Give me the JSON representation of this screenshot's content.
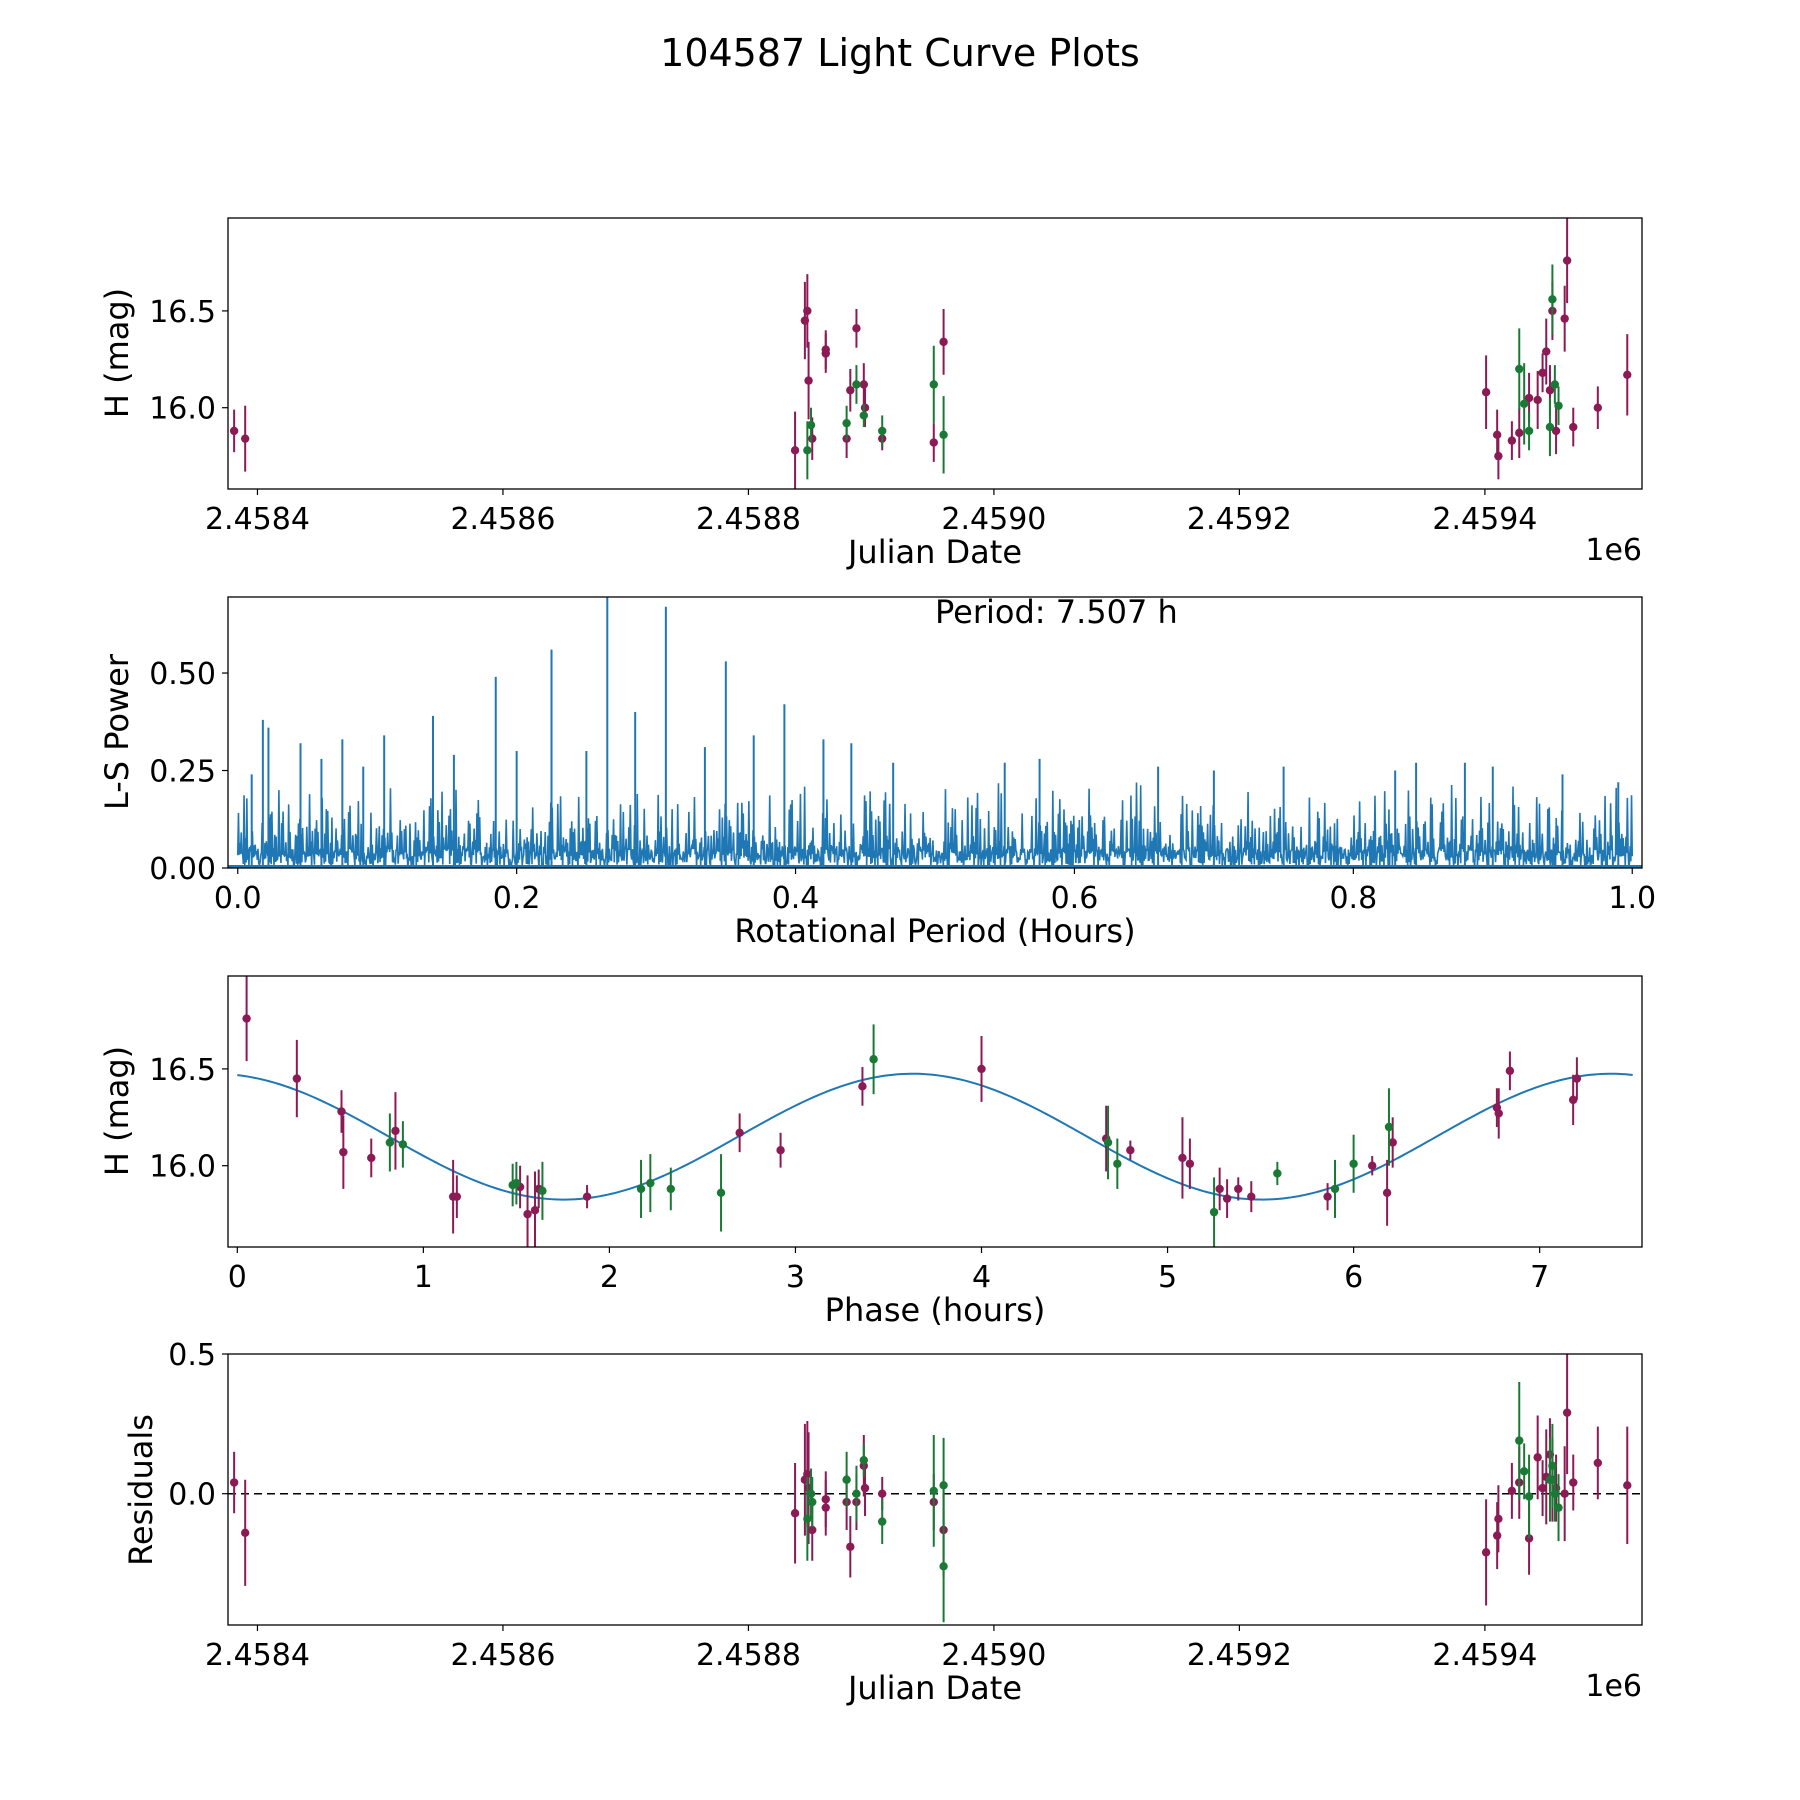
{
  "figure_title": "104587 Light Curve Plots",
  "colors": {
    "magenta": "#8b1a55",
    "green": "#1a7a35",
    "blue": "#1f77b4",
    "axis": "#000000"
  },
  "chart_data": [
    {
      "id": "lightcurve",
      "type": "scatter",
      "title": "",
      "xlabel": "Julian Date",
      "ylabel": "H (mag)",
      "offset_text": "1e6",
      "xlim": [
        2458376,
        2459528
      ],
      "ylim": [
        15.58,
        16.98
      ],
      "xticks": [
        2458400,
        2458600,
        2458800,
        2459000,
        2459200,
        2459400
      ],
      "xtick_labels": [
        "2.4584",
        "2.4586",
        "2.4588",
        "2.4590",
        "2.4592",
        "2.4594"
      ],
      "yticks": [
        16.0,
        16.5
      ],
      "ytick_labels": [
        "16.0",
        "16.5"
      ],
      "series": [
        {
          "name": "magenta",
          "color": "#8b1a55",
          "points": [
            [
              2458381,
              15.88,
              0.11
            ],
            [
              2458390,
              15.84,
              0.17
            ],
            [
              2458838,
              15.78,
              0.2
            ],
            [
              2458846,
              16.45,
              0.2
            ],
            [
              2458848,
              16.5,
              0.19
            ],
            [
              2458849,
              16.14,
              0.2
            ],
            [
              2458852,
              15.84,
              0.11
            ],
            [
              2458863,
              16.28,
              0.1
            ],
            [
              2458863,
              16.3,
              0.1
            ],
            [
              2458880,
              15.84,
              0.1
            ],
            [
              2458883,
              16.09,
              0.11
            ],
            [
              2458888,
              16.41,
              0.1
            ],
            [
              2458894,
              16.12,
              0.11
            ],
            [
              2458895,
              16.0,
              0.1
            ],
            [
              2458909,
              15.84,
              0.06
            ],
            [
              2458951,
              15.82,
              0.1
            ],
            [
              2458959,
              16.34,
              0.17
            ],
            [
              2459401,
              16.08,
              0.19
            ],
            [
              2459410,
              15.86,
              0.13
            ],
            [
              2459411,
              15.75,
              0.12
            ],
            [
              2459422,
              15.83,
              0.1
            ],
            [
              2459428,
              15.87,
              0.13
            ],
            [
              2459436,
              16.05,
              0.13
            ],
            [
              2459443,
              16.04,
              0.15
            ],
            [
              2459447,
              16.18,
              0.1
            ],
            [
              2459450,
              16.29,
              0.17
            ],
            [
              2459453,
              16.09,
              0.13
            ],
            [
              2459455,
              16.5,
              0.15
            ],
            [
              2459458,
              15.88,
              0.12
            ],
            [
              2459465,
              16.46,
              0.17
            ],
            [
              2459467,
              16.76,
              0.22
            ],
            [
              2459472,
              15.9,
              0.1
            ],
            [
              2459492,
              16.0,
              0.11
            ],
            [
              2459516,
              16.17,
              0.21
            ]
          ]
        },
        {
          "name": "green",
          "color": "#1a7a35",
          "points": [
            [
              2458848,
              15.78,
              0.15
            ],
            [
              2458851,
              15.91,
              0.09
            ],
            [
              2458880,
              15.92,
              0.09
            ],
            [
              2458888,
              16.12,
              0.1
            ],
            [
              2458894,
              15.96,
              0.06
            ],
            [
              2458909,
              15.88,
              0.08
            ],
            [
              2458951,
              16.12,
              0.2
            ],
            [
              2458959,
              15.86,
              0.2
            ],
            [
              2459428,
              16.2,
              0.21
            ],
            [
              2459432,
              16.02,
              0.21
            ],
            [
              2459436,
              15.88,
              0.1
            ],
            [
              2459453,
              15.9,
              0.15
            ],
            [
              2459455,
              16.56,
              0.18
            ],
            [
              2459457,
              16.12,
              0.1
            ],
            [
              2459460,
              16.01,
              0.1
            ]
          ]
        }
      ]
    },
    {
      "id": "periodogram",
      "type": "line",
      "title": "",
      "xlabel": "Rotational Period (Hours)",
      "ylabel": "L-S Power",
      "annotation": "Period: 7.507 h",
      "xlim": [
        -0.007,
        1.007
      ],
      "ylim": [
        0.0,
        0.695
      ],
      "xticks": [
        0.0,
        0.2,
        0.4,
        0.6,
        0.8,
        1.0
      ],
      "xtick_labels": [
        "0.0",
        "0.2",
        "0.4",
        "0.6",
        "0.8",
        "1.0"
      ],
      "yticks": [
        0.0,
        0.25,
        0.5
      ],
      "ytick_labels": [
        "0.00",
        "0.25",
        "0.50"
      ],
      "color": "#1f77b4",
      "x_range": [
        0.0,
        1.0
      ],
      "samples": 2000,
      "baseline": 0.05,
      "noise_max": 0.2,
      "peaks": [
        [
          0.01,
          0.24
        ],
        [
          0.018,
          0.38
        ],
        [
          0.022,
          0.36
        ],
        [
          0.045,
          0.32
        ],
        [
          0.06,
          0.28
        ],
        [
          0.075,
          0.33
        ],
        [
          0.09,
          0.26
        ],
        [
          0.105,
          0.34
        ],
        [
          0.14,
          0.39
        ],
        [
          0.155,
          0.29
        ],
        [
          0.185,
          0.49
        ],
        [
          0.2,
          0.3
        ],
        [
          0.225,
          0.56
        ],
        [
          0.25,
          0.3
        ],
        [
          0.265,
          0.7
        ],
        [
          0.285,
          0.4
        ],
        [
          0.307,
          0.67
        ],
        [
          0.335,
          0.31
        ],
        [
          0.35,
          0.53
        ],
        [
          0.37,
          0.34
        ],
        [
          0.392,
          0.42
        ],
        [
          0.42,
          0.33
        ],
        [
          0.44,
          0.32
        ],
        [
          0.47,
          0.27
        ],
        [
          0.55,
          0.27
        ],
        [
          0.575,
          0.28
        ],
        [
          0.66,
          0.26
        ],
        [
          0.7,
          0.25
        ],
        [
          0.75,
          0.26
        ],
        [
          0.83,
          0.25
        ],
        [
          0.845,
          0.27
        ],
        [
          0.88,
          0.27
        ],
        [
          0.9,
          0.26
        ],
        [
          0.95,
          0.24
        ],
        [
          0.99,
          0.22
        ]
      ]
    },
    {
      "id": "phasefold",
      "type": "scatter",
      "title": "",
      "xlabel": "Phase (hours)",
      "ylabel": "H (mag)",
      "xlim": [
        -0.05,
        7.55
      ],
      "ylim": [
        15.58,
        16.98
      ],
      "xticks": [
        0,
        1,
        2,
        3,
        4,
        5,
        6,
        7
      ],
      "xtick_labels": [
        "0",
        "1",
        "2",
        "3",
        "4",
        "5",
        "6",
        "7"
      ],
      "yticks": [
        16.0,
        16.5
      ],
      "ytick_labels": [
        "16.0",
        "16.5"
      ],
      "model": {
        "type": "sinusoid",
        "mean": 16.15,
        "amplitude": 0.325,
        "period": 3.753,
        "peak_phase": 3.63,
        "x_start": 0.0,
        "x_end": 7.5,
        "color": "#1f77b4"
      },
      "series": [
        {
          "name": "magenta",
          "color": "#8b1a55",
          "points": [
            [
              0.05,
              16.76,
              0.22
            ],
            [
              0.32,
              16.45,
              0.2
            ],
            [
              0.56,
              16.28,
              0.11
            ],
            [
              0.57,
              16.07,
              0.19
            ],
            [
              0.72,
              16.04,
              0.1
            ],
            [
              0.85,
              16.18,
              0.2
            ],
            [
              1.16,
              15.84,
              0.19
            ],
            [
              1.18,
              15.84,
              0.11
            ],
            [
              1.52,
              15.89,
              0.11
            ],
            [
              1.56,
              15.75,
              0.2
            ],
            [
              1.6,
              15.77,
              0.2
            ],
            [
              1.62,
              15.88,
              0.1
            ],
            [
              1.88,
              15.84,
              0.06
            ],
            [
              2.7,
              16.17,
              0.1
            ],
            [
              2.92,
              16.08,
              0.09
            ],
            [
              3.36,
              16.41,
              0.1
            ],
            [
              4.0,
              16.5,
              0.17
            ],
            [
              4.67,
              16.14,
              0.17
            ],
            [
              4.8,
              16.08,
              0.05
            ],
            [
              5.08,
              16.04,
              0.21
            ],
            [
              5.12,
              16.01,
              0.13
            ],
            [
              5.28,
              15.88,
              0.11
            ],
            [
              5.32,
              15.83,
              0.1
            ],
            [
              5.38,
              15.88,
              0.06
            ],
            [
              5.45,
              15.84,
              0.08
            ],
            [
              5.86,
              15.84,
              0.07
            ],
            [
              6.1,
              16.0,
              0.05
            ],
            [
              6.18,
              15.86,
              0.17
            ],
            [
              6.21,
              16.12,
              0.13
            ],
            [
              6.77,
              16.3,
              0.1
            ],
            [
              6.78,
              16.27,
              0.13
            ],
            [
              6.84,
              16.49,
              0.1
            ],
            [
              7.18,
              16.34,
              0.13
            ],
            [
              7.2,
              16.45,
              0.11
            ]
          ]
        },
        {
          "name": "green",
          "color": "#1a7a35",
          "points": [
            [
              0.82,
              16.12,
              0.15
            ],
            [
              0.89,
              16.11,
              0.12
            ],
            [
              1.48,
              15.9,
              0.11
            ],
            [
              1.5,
              15.91,
              0.11
            ],
            [
              1.64,
              15.87,
              0.15
            ],
            [
              2.17,
              15.88,
              0.15
            ],
            [
              2.22,
              15.91,
              0.15
            ],
            [
              2.33,
              15.88,
              0.11
            ],
            [
              2.6,
              15.86,
              0.2
            ],
            [
              3.42,
              16.55,
              0.18
            ],
            [
              4.68,
              16.12,
              0.19
            ],
            [
              4.73,
              16.01,
              0.13
            ],
            [
              5.25,
              15.76,
              0.18
            ],
            [
              5.59,
              15.96,
              0.06
            ],
            [
              5.9,
              15.88,
              0.15
            ],
            [
              6.0,
              16.01,
              0.15
            ],
            [
              6.19,
              16.2,
              0.2
            ]
          ]
        }
      ]
    },
    {
      "id": "residuals",
      "type": "scatter",
      "title": "",
      "xlabel": "Julian Date",
      "ylabel": "Residuals",
      "offset_text": "1e6",
      "xlim": [
        2458376,
        2459528
      ],
      "ylim": [
        -0.47,
        0.5
      ],
      "xticks": [
        2458400,
        2458600,
        2458800,
        2459000,
        2459200,
        2459400
      ],
      "xtick_labels": [
        "2.4584",
        "2.4586",
        "2.4588",
        "2.4590",
        "2.4592",
        "2.4594"
      ],
      "yticks": [
        0.0,
        0.5
      ],
      "ytick_labels": [
        "0.0",
        "0.5"
      ],
      "reference_line": 0.0,
      "series": [
        {
          "name": "magenta",
          "color": "#8b1a55",
          "points": [
            [
              2458381,
              0.04,
              0.11
            ],
            [
              2458390,
              -0.14,
              0.19
            ],
            [
              2458838,
              -0.07,
              0.18
            ],
            [
              2458846,
              0.05,
              0.2
            ],
            [
              2458848,
              0.07,
              0.19
            ],
            [
              2458849,
              0.02,
              0.2
            ],
            [
              2458852,
              -0.13,
              0.11
            ],
            [
              2458863,
              -0.02,
              0.1
            ],
            [
              2458863,
              -0.05,
              0.1
            ],
            [
              2458880,
              -0.03,
              0.1
            ],
            [
              2458883,
              -0.19,
              0.11
            ],
            [
              2458888,
              -0.03,
              0.1
            ],
            [
              2458894,
              0.1,
              0.11
            ],
            [
              2458895,
              0.02,
              0.1
            ],
            [
              2458909,
              0.0,
              0.06
            ],
            [
              2458951,
              -0.03,
              0.1
            ],
            [
              2458959,
              -0.13,
              0.17
            ],
            [
              2459401,
              -0.21,
              0.19
            ],
            [
              2459410,
              -0.15,
              0.12
            ],
            [
              2459411,
              -0.09,
              0.12
            ],
            [
              2459422,
              0.01,
              0.1
            ],
            [
              2459428,
              0.04,
              0.13
            ],
            [
              2459436,
              -0.16,
              0.13
            ],
            [
              2459443,
              0.13,
              0.15
            ],
            [
              2459447,
              0.02,
              0.1
            ],
            [
              2459450,
              0.06,
              0.17
            ],
            [
              2459453,
              0.14,
              0.13
            ],
            [
              2459455,
              0.05,
              0.15
            ],
            [
              2459458,
              0.02,
              0.12
            ],
            [
              2459465,
              0.0,
              0.17
            ],
            [
              2459467,
              0.29,
              0.22
            ],
            [
              2459472,
              0.04,
              0.1
            ],
            [
              2459492,
              0.11,
              0.13
            ],
            [
              2459516,
              0.03,
              0.21
            ]
          ]
        },
        {
          "name": "green",
          "color": "#1a7a35",
          "points": [
            [
              2458848,
              -0.09,
              0.15
            ],
            [
              2458851,
              0.0,
              0.09
            ],
            [
              2458852,
              -0.03,
              0.09
            ],
            [
              2458880,
              0.05,
              0.1
            ],
            [
              2458888,
              0.0,
              0.1
            ],
            [
              2458894,
              0.12,
              0.06
            ],
            [
              2458909,
              -0.1,
              0.08
            ],
            [
              2458951,
              0.01,
              0.2
            ],
            [
              2458959,
              0.03,
              0.17
            ],
            [
              2458959,
              -0.26,
              0.2
            ],
            [
              2459428,
              0.19,
              0.21
            ],
            [
              2459432,
              0.08,
              0.1
            ],
            [
              2459436,
              -0.01,
              0.15
            ],
            [
              2459453,
              0.05,
              0.15
            ],
            [
              2459457,
              0.0,
              0.1
            ],
            [
              2459460,
              -0.05,
              0.12
            ],
            [
              2459455,
              0.1,
              0.15
            ]
          ]
        }
      ]
    }
  ]
}
